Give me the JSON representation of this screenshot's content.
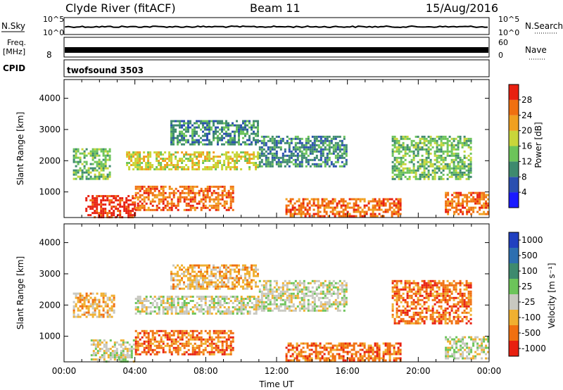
{
  "header": {
    "station": "Clyde River (fitACF)",
    "beam": "Beam 11",
    "date": "15/Aug/2016"
  },
  "status_panels": {
    "nsky_label": "N.Sky",
    "nsearch_label": "N.Search",
    "noise_ticks": [
      "10^5",
      "10^0"
    ],
    "freq_label_line1": "Freq.",
    "freq_label_line2": "[MHz]",
    "freq_tick": "8",
    "nave_label": "Nave",
    "nave_ticks": [
      "60",
      "0"
    ],
    "cpid_label": "CPID",
    "cpid_value": "twofsound 3503"
  },
  "chart_data": [
    {
      "type": "heatmap",
      "name": "power",
      "ylabel": "Slant Range [km]",
      "xlabel": "",
      "colorbar_label": "Power [dB]",
      "xlim": [
        "00:00",
        "24:00"
      ],
      "ylim": [
        180,
        4600
      ],
      "yticks": [
        1000,
        2000,
        3000,
        4000
      ],
      "colorbar_ticks": [
        "4",
        "8",
        "12",
        "16",
        "20",
        "24",
        "28"
      ],
      "colorbar_colors": [
        "#1a1aff",
        "#2a4fb0",
        "#3e8a6e",
        "#6cc45a",
        "#c9d63a",
        "#f0a020",
        "#f07010",
        "#e82010"
      ],
      "colorbar_range": [
        0,
        32
      ],
      "regions": [
        {
          "t": [
            0.5,
            2.6
          ],
          "r": [
            1400,
            2400
          ],
          "v": 12
        },
        {
          "t": [
            1.2,
            4.0
          ],
          "r": [
            200,
            900
          ],
          "v": 29
        },
        {
          "t": [
            4.0,
            9.5
          ],
          "r": [
            400,
            1200
          ],
          "v": 25
        },
        {
          "t": [
            3.5,
            11.0
          ],
          "r": [
            1700,
            2300
          ],
          "v": 17
        },
        {
          "t": [
            6.0,
            11.0
          ],
          "r": [
            2500,
            3300
          ],
          "v": 10
        },
        {
          "t": [
            11.0,
            16.0
          ],
          "r": [
            1800,
            2800
          ],
          "v": 8
        },
        {
          "t": [
            12.5,
            19.0
          ],
          "r": [
            200,
            800
          ],
          "v": 24
        },
        {
          "t": [
            18.5,
            23.0
          ],
          "r": [
            1400,
            2800
          ],
          "v": 12
        },
        {
          "t": [
            21.5,
            24.0
          ],
          "r": [
            300,
            1000
          ],
          "v": 27
        }
      ]
    },
    {
      "type": "heatmap",
      "name": "velocity",
      "ylabel": "Slant Range [km]",
      "xlabel": "Time UT",
      "colorbar_label": "Velocity [m s⁻¹]",
      "xlim": [
        "00:00",
        "24:00"
      ],
      "ylim": [
        180,
        4600
      ],
      "xticks": [
        "00:00",
        "04:00",
        "08:00",
        "12:00",
        "16:00",
        "20:00",
        "00:00"
      ],
      "yticks": [
        1000,
        2000,
        3000,
        4000
      ],
      "colorbar_ticks": [
        "1000",
        "500",
        "100",
        "25",
        "-25",
        "-100",
        "-500",
        "-1000"
      ],
      "colorbar_colors": [
        "#2040c0",
        "#2d6fb0",
        "#3e8a6e",
        "#6cc45a",
        "#c8c8c0",
        "#f0b030",
        "#f07010",
        "#e82010"
      ],
      "regions": [
        {
          "t": [
            0.5,
            2.8
          ],
          "r": [
            1600,
            2400
          ],
          "v": -100
        },
        {
          "t": [
            1.5,
            4.0
          ],
          "r": [
            200,
            900
          ],
          "v": 0
        },
        {
          "t": [
            4.0,
            9.5
          ],
          "r": [
            400,
            1200
          ],
          "v": -300
        },
        {
          "t": [
            4.0,
            11.0
          ],
          "r": [
            1700,
            2300
          ],
          "v": 0
        },
        {
          "t": [
            6.0,
            11.0
          ],
          "r": [
            2500,
            3300
          ],
          "v": -80
        },
        {
          "t": [
            11.0,
            16.0
          ],
          "r": [
            1800,
            2800
          ],
          "v": 0
        },
        {
          "t": [
            12.5,
            19.0
          ],
          "r": [
            200,
            800
          ],
          "v": -300
        },
        {
          "t": [
            18.5,
            23.0
          ],
          "r": [
            1400,
            2800
          ],
          "v": -300
        },
        {
          "t": [
            21.5,
            24.0
          ],
          "r": [
            300,
            1000
          ],
          "v": 0
        }
      ]
    }
  ]
}
